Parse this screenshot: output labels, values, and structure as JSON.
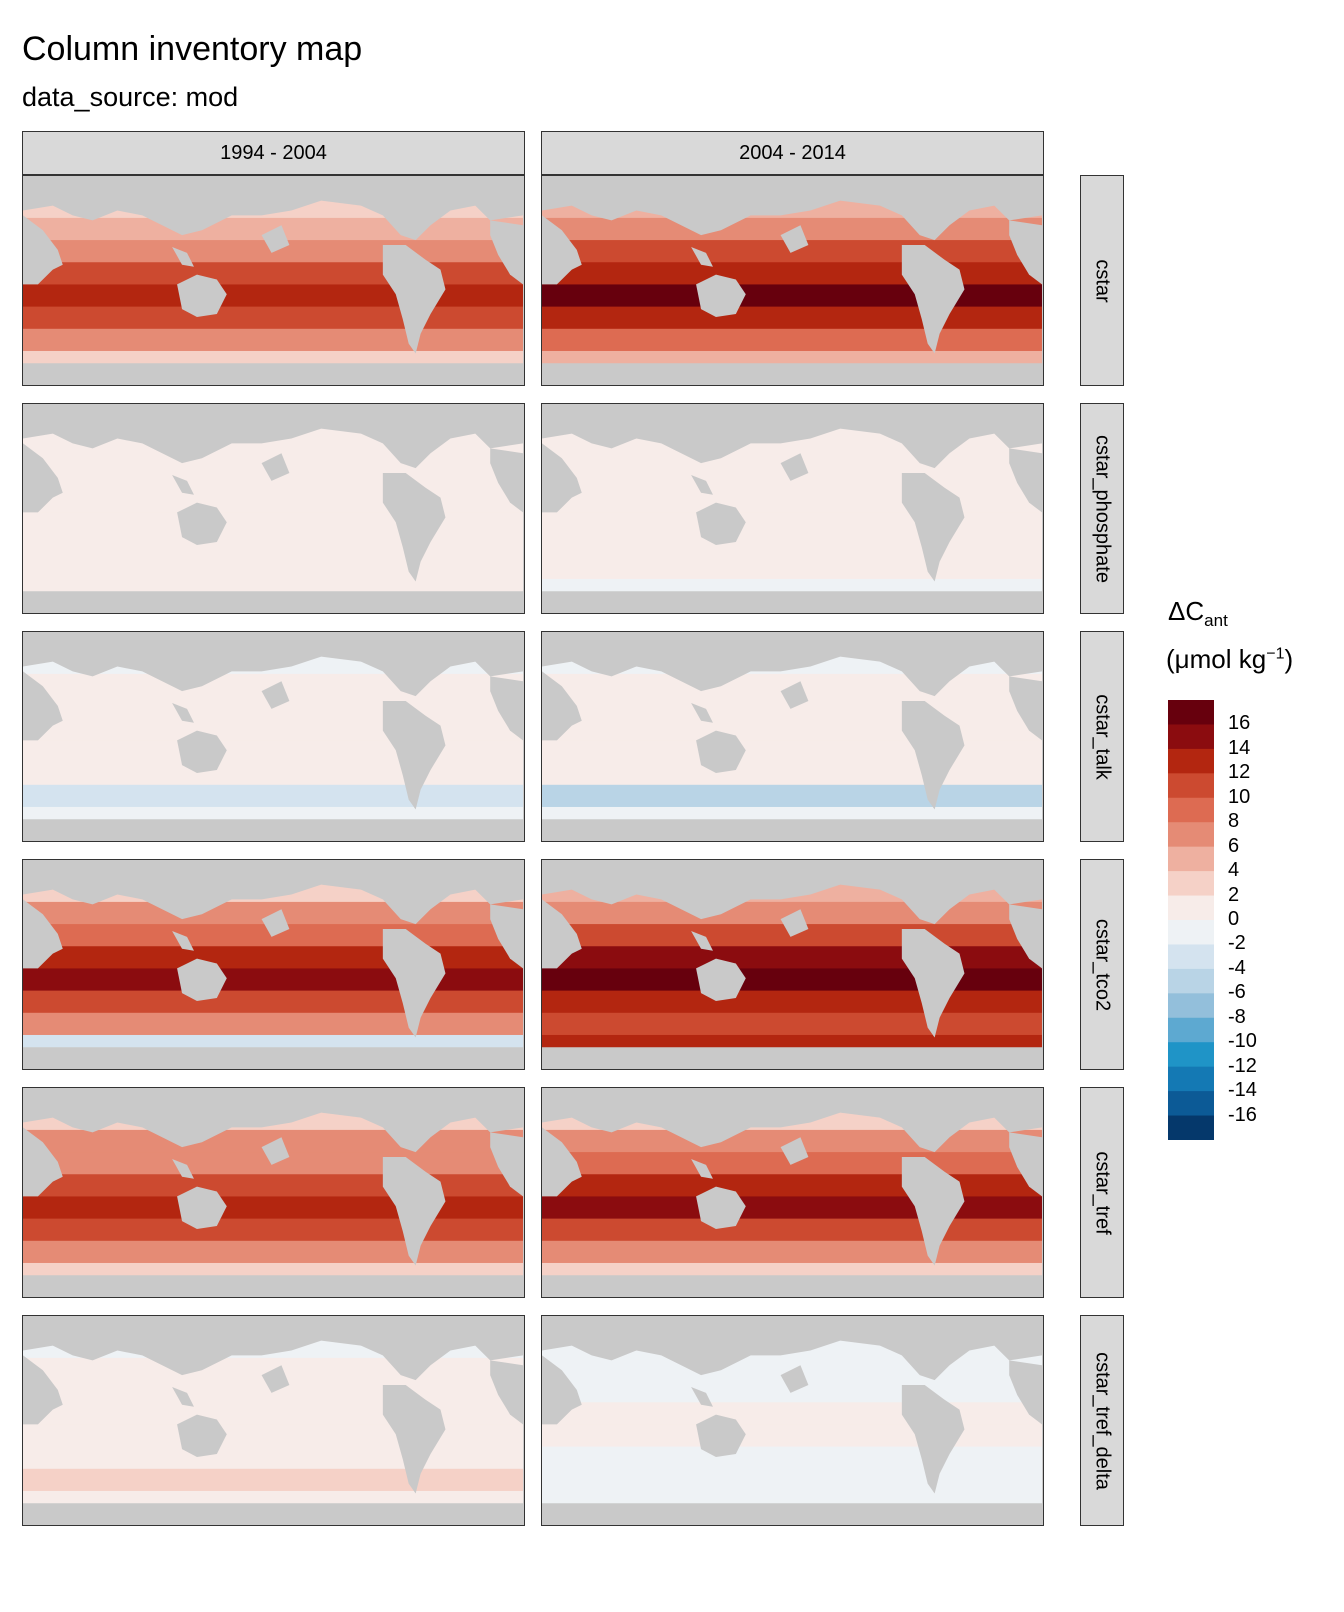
{
  "title": "Column inventory map",
  "subtitle": "data_source: mod",
  "columns": [
    "1994 - 2004",
    "2004 - 2014"
  ],
  "rows": [
    "cstar",
    "cstar_phosphate",
    "cstar_talk",
    "cstar_tco2",
    "cstar_tref",
    "cstar_tref_delta"
  ],
  "legend": {
    "title_main": "ΔC",
    "title_sub": "ant",
    "unit_open": "(μmol kg",
    "unit_sup": "−1",
    "unit_close": ")",
    "ticks": [
      "16",
      "14",
      "12",
      "10",
      "8",
      "6",
      "4",
      "2",
      "0",
      "-2",
      "-4",
      "-6",
      "-8",
      "-10",
      "-12",
      "-14",
      "-16"
    ],
    "bins": [
      "#67000d",
      "#8b0c0f",
      "#b32610",
      "#cc4a30",
      "#dd6b52",
      "#e58b75",
      "#eeb0a0",
      "#f5d1c7",
      "#f7ece9",
      "#eef2f5",
      "#d4e3ef",
      "#b9d4e6",
      "#93bfdb",
      "#5da9d1",
      "#1f94c7",
      "#1479b4",
      "#0c5a96",
      "#05386b"
    ]
  },
  "chart_data": {
    "type": "heatmap",
    "title": "Column inventory map",
    "subtitle": "data_source: mod",
    "facet_columns": [
      "1994 - 2004",
      "2004 - 2014"
    ],
    "facet_rows": [
      "cstar",
      "cstar_phosphate",
      "cstar_talk",
      "cstar_tco2",
      "cstar_tref",
      "cstar_tref_delta"
    ],
    "variable": "ΔCant (μmol kg−1)",
    "color_range": [
      -16,
      16
    ],
    "panels": [
      {
        "row": "cstar",
        "col": "1994 - 2004",
        "bands": [
          2,
          5,
          7,
          9,
          12,
          9,
          7,
          3
        ]
      },
      {
        "row": "cstar",
        "col": "2004 - 2014",
        "bands": [
          4,
          6,
          9,
          12,
          16,
          11,
          8,
          4
        ]
      },
      {
        "row": "cstar_phosphate",
        "col": "1994 - 2004",
        "bands": [
          1,
          1,
          1,
          1,
          1,
          1,
          1,
          1
        ]
      },
      {
        "row": "cstar_phosphate",
        "col": "2004 - 2014",
        "bands": [
          1,
          1,
          1,
          1,
          1,
          1,
          1,
          0
        ]
      },
      {
        "row": "cstar_talk",
        "col": "1994 - 2004",
        "bands": [
          0,
          1,
          1,
          1,
          1,
          1,
          -2,
          0
        ]
      },
      {
        "row": "cstar_talk",
        "col": "2004 - 2014",
        "bands": [
          -1,
          1,
          1,
          1,
          1,
          1,
          -4,
          0
        ]
      },
      {
        "row": "cstar_tco2",
        "col": "1994 - 2004",
        "bands": [
          3,
          6,
          8,
          11,
          14,
          10,
          6,
          -2
        ]
      },
      {
        "row": "cstar_tco2",
        "col": "2004 - 2014",
        "bands": [
          5,
          7,
          10,
          13,
          16,
          11,
          9,
          12
        ]
      },
      {
        "row": "cstar_tref",
        "col": "1994 - 2004",
        "bands": [
          2,
          6,
          7,
          9,
          12,
          9,
          6,
          2
        ]
      },
      {
        "row": "cstar_tref",
        "col": "2004 - 2014",
        "bands": [
          3,
          6,
          8,
          11,
          13,
          10,
          7,
          3
        ]
      },
      {
        "row": "cstar_tref_delta",
        "col": "1994 - 2004",
        "bands": [
          0,
          1,
          1,
          1,
          1,
          1,
          2,
          1
        ]
      },
      {
        "row": "cstar_tref_delta",
        "col": "2004 - 2014",
        "bands": [
          0,
          0,
          0,
          1,
          1,
          0,
          -1,
          0
        ]
      }
    ]
  }
}
